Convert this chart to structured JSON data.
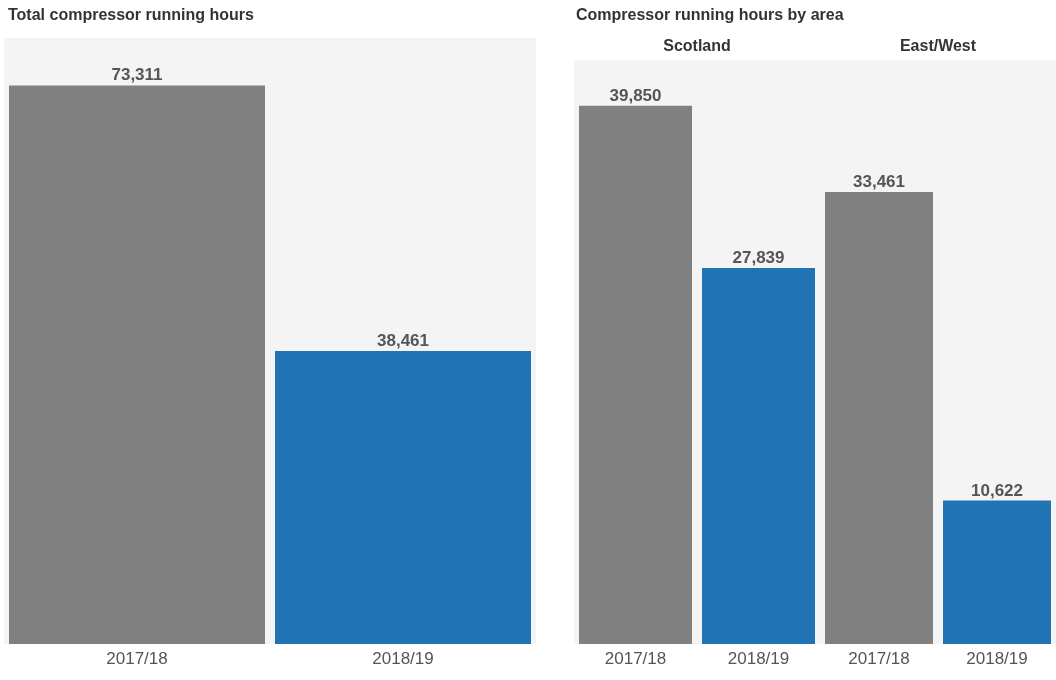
{
  "chart_data": [
    {
      "type": "bar",
      "title": "Total compressor running hours",
      "categories": [
        "2017/18",
        "2018/19"
      ],
      "values": [
        73311,
        38461
      ],
      "value_labels": [
        "73,311",
        "38,461"
      ],
      "colors": [
        "#808080",
        "#2074b4"
      ]
    },
    {
      "type": "bar",
      "title": "Compressor running hours by area",
      "subtitle": "Scotland",
      "categories": [
        "2017/18",
        "2018/19"
      ],
      "values": [
        39850,
        27839
      ],
      "value_labels": [
        "39,850",
        "27,839"
      ],
      "colors": [
        "#808080",
        "#2074b4"
      ]
    },
    {
      "type": "bar",
      "subtitle": "East/West",
      "categories": [
        "2017/18",
        "2018/19"
      ],
      "values": [
        33461,
        10622
      ],
      "value_labels": [
        "33,461",
        "10,622"
      ],
      "colors": [
        "#808080",
        "#2074b4"
      ]
    }
  ]
}
